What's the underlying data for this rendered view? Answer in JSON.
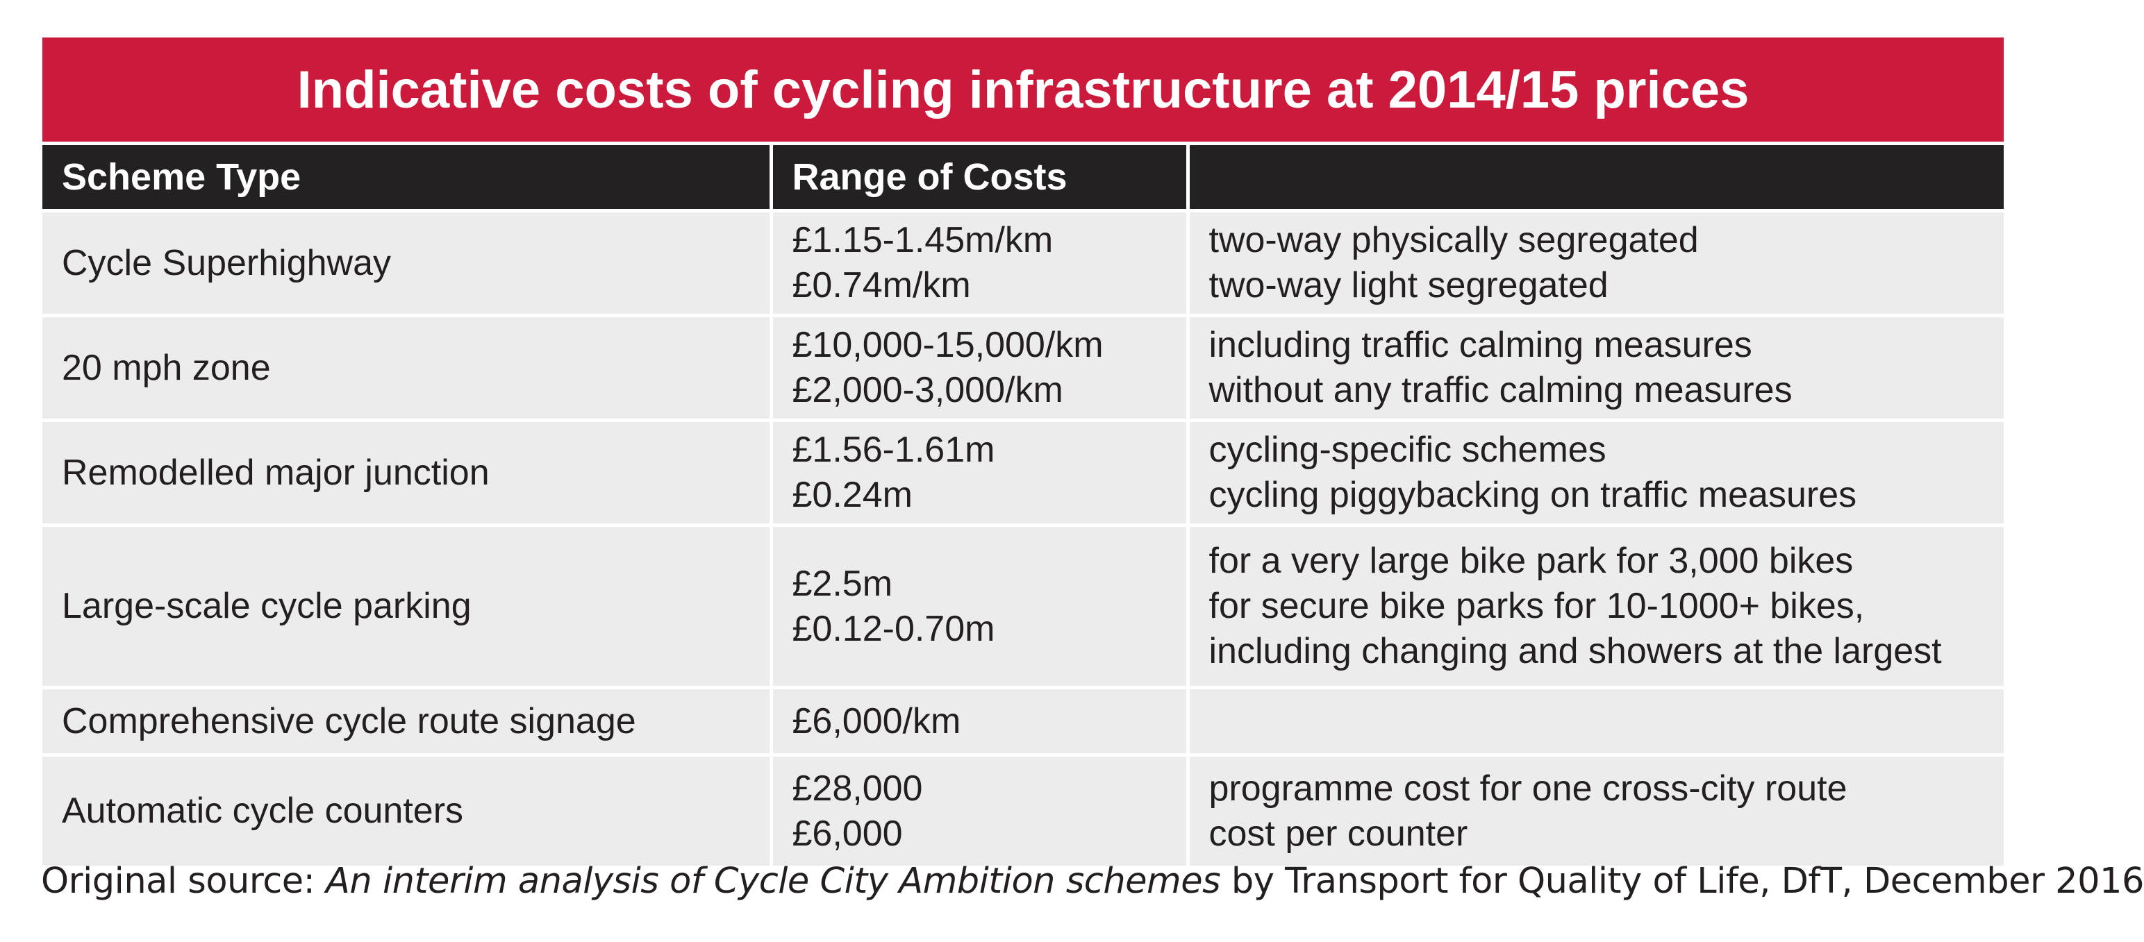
{
  "title": "Indicative costs of cycling infrastructure at 2014/15 prices",
  "headers": [
    "Scheme Type",
    "Range of Costs",
    ""
  ],
  "rows": [
    {
      "scheme": "Cycle Superhighway",
      "costs": [
        "£1.15-1.45m/km",
        "£0.74m/km"
      ],
      "notes": [
        "two-way physically segregated",
        "two-way light segregated"
      ]
    },
    {
      "scheme": "20 mph zone",
      "costs": [
        "£10,000-15,000/km",
        "£2,000-3,000/km"
      ],
      "notes": [
        "including traffic calming measures",
        "without any traffic calming measures"
      ]
    },
    {
      "scheme": "Remodelled major junction",
      "costs": [
        "£1.56-1.61m",
        "£0.24m"
      ],
      "notes": [
        "cycling-specific schemes",
        "cycling piggybacking on traffic measures"
      ]
    },
    {
      "scheme": "Large-scale cycle parking",
      "costs": [
        "£2.5m",
        "£0.12-0.70m"
      ],
      "notes": [
        "for a very large bike park for 3,000 bikes",
        "for secure bike parks for 10-1000+ bikes,",
        "including changing and showers at the largest"
      ]
    },
    {
      "scheme": "Comprehensive cycle route signage",
      "costs": [
        "£6,000/km"
      ],
      "notes": []
    },
    {
      "scheme": "Automatic cycle counters",
      "costs": [
        "£28,000",
        "£6,000"
      ],
      "notes": [
        "programme cost for one cross-city route",
        "cost per counter"
      ]
    }
  ],
  "source": {
    "prefix": "Original source: ",
    "title": "An interim analysis of Cycle City Ambition schemes",
    "suffix": " by Transport for Quality of Life, DfT, December 2016"
  },
  "colors": {
    "title_bg": "#cb1a3c",
    "header_bg": "#232122",
    "row_bg": "#ececec",
    "text": "#231f20"
  }
}
